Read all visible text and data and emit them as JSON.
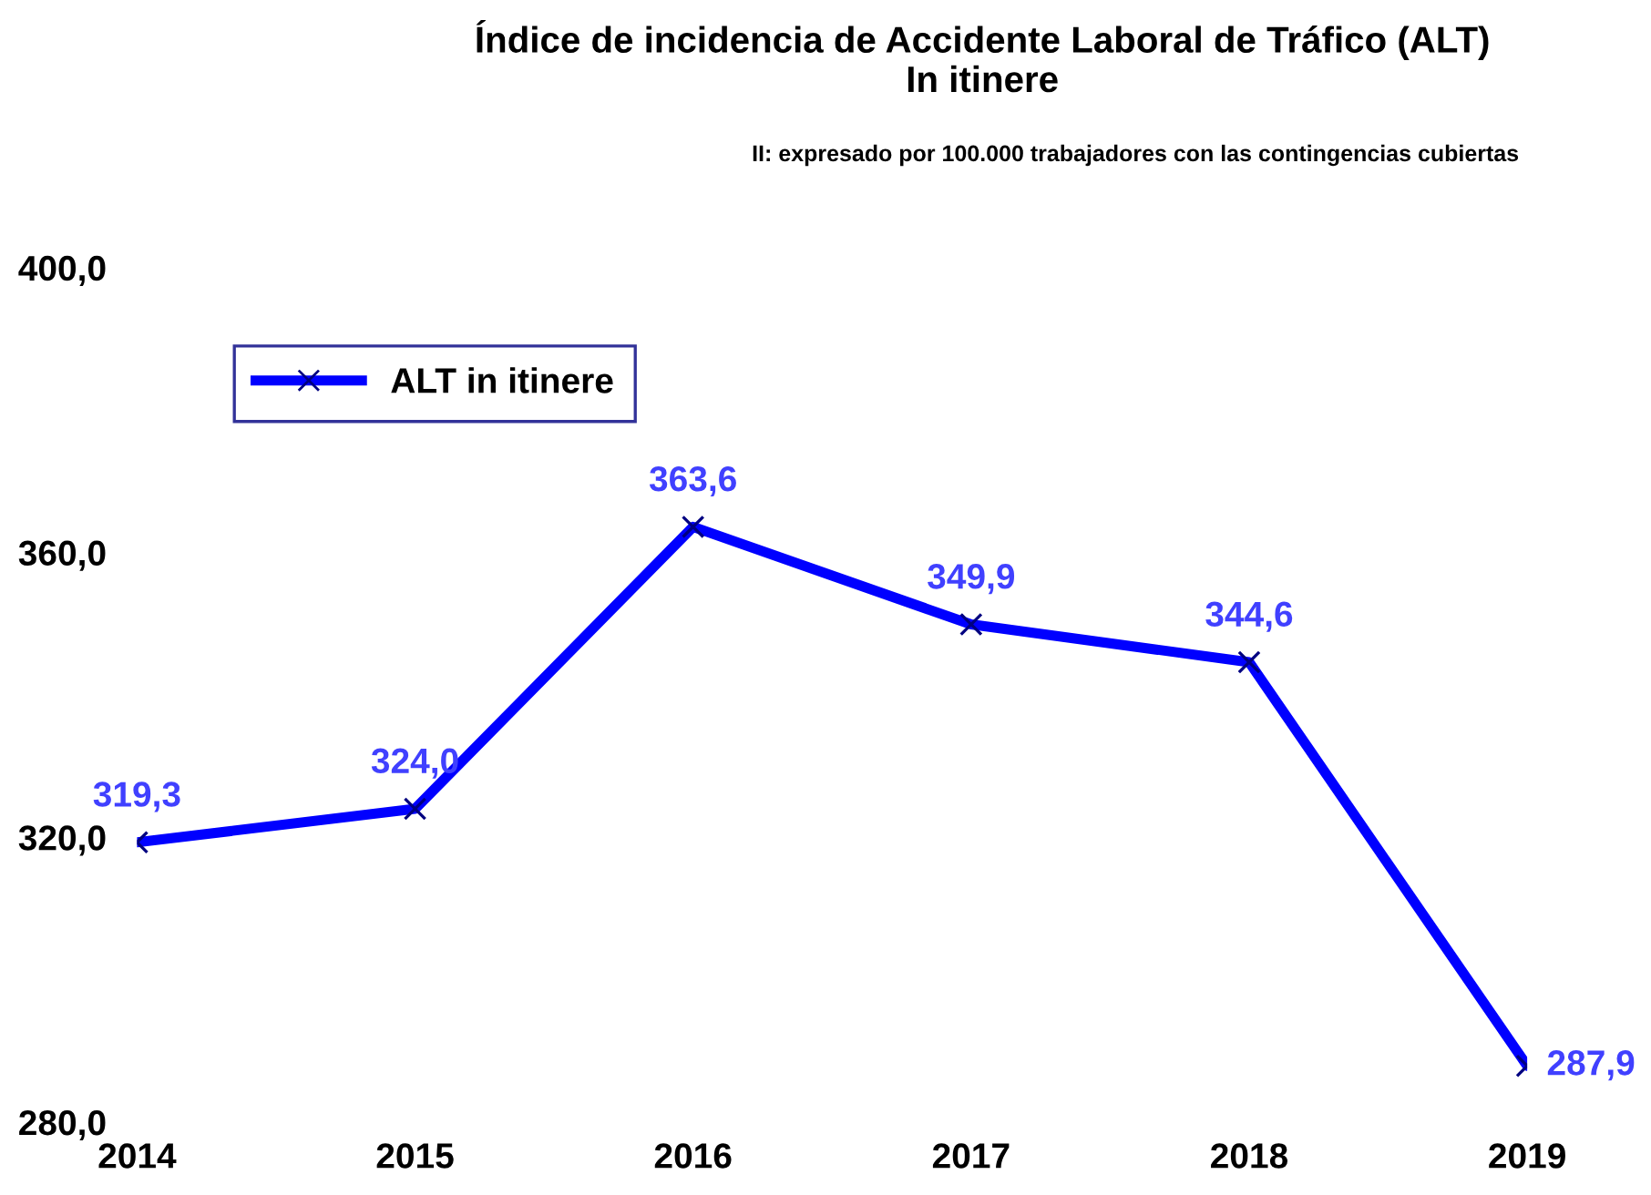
{
  "chart_data": {
    "type": "line",
    "title": "Índice de incidencia de Accidente Laboral de Tráfico (ALT)\nIn itinere",
    "subtitle": "II: expresado por 100.000 trabajadores con las contingencias cubiertas",
    "categories": [
      "2014",
      "2015",
      "2016",
      "2017",
      "2018",
      "2019"
    ],
    "series": [
      {
        "name": "ALT in itinere",
        "color": "#0000ff",
        "values": [
          319.3,
          324.0,
          363.6,
          349.9,
          344.6,
          287.9
        ],
        "value_labels": [
          "319,3",
          "324,0",
          "363,6",
          "349,9",
          "344,6",
          "287,9"
        ]
      }
    ],
    "ylim": [
      280,
      400
    ],
    "yticks": [
      {
        "value": 280,
        "label": "280,0"
      },
      {
        "value": 320,
        "label": "320,0"
      },
      {
        "value": 360,
        "label": "360,0"
      },
      {
        "value": 400,
        "label": "400,0"
      }
    ],
    "marker": "cross",
    "line_style": "solid",
    "legend": "top left",
    "grid": false
  }
}
